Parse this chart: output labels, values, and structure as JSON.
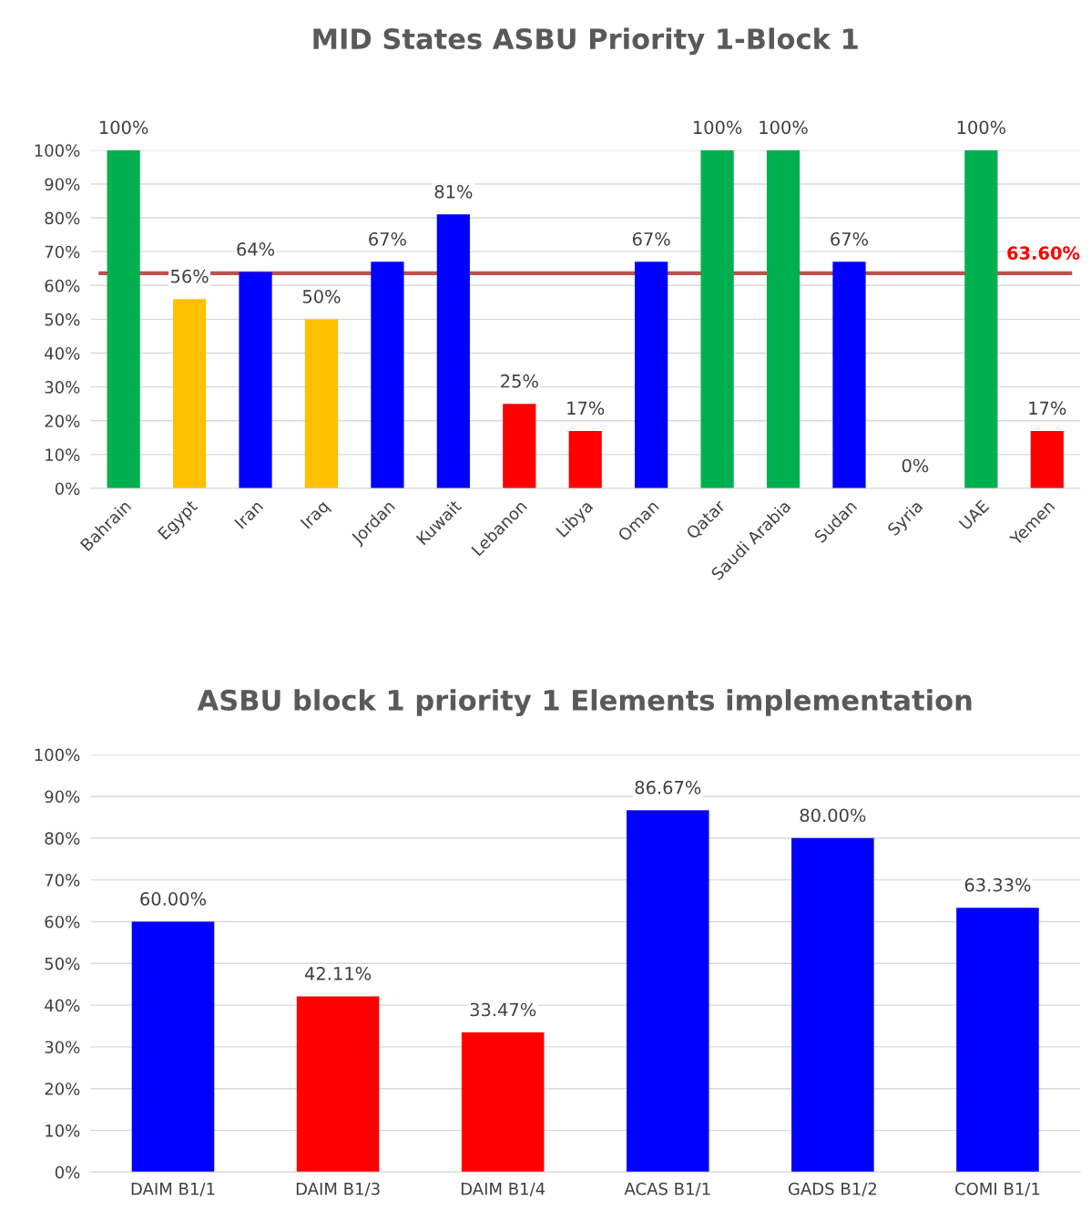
{
  "chart_data": [
    {
      "type": "bar",
      "title": "MID States ASBU Priority 1-Block 1",
      "categories": [
        "Bahrain",
        "Egypt",
        "Iran",
        "Iraq",
        "Jordan",
        "Kuwait",
        "Lebanon",
        "Libya",
        "Oman",
        "Qatar",
        "Saudi Arabia",
        "Sudan",
        "Syria",
        "UAE",
        "Yemen"
      ],
      "values": [
        100,
        56,
        64,
        50,
        67,
        81,
        25,
        17,
        67,
        100,
        100,
        67,
        0,
        100,
        17
      ],
      "colors": [
        "#00b050",
        "#ffc000",
        "#0000ff",
        "#ffc000",
        "#0000ff",
        "#0000ff",
        "#ff0000",
        "#ff0000",
        "#0000ff",
        "#00b050",
        "#00b050",
        "#0000ff",
        "#0000ff",
        "#00b050",
        "#ff0000"
      ],
      "value_labels": [
        "100%",
        "56%",
        "64%",
        "50%",
        "67%",
        "81%",
        "25%",
        "17%",
        "67%",
        "100%",
        "100%",
        "67%",
        "0%",
        "100%",
        "17%"
      ],
      "ylim": [
        0,
        100
      ],
      "yticks": [
        {
          "value": 0,
          "label": "0%"
        },
        {
          "value": 10,
          "label": "10%"
        },
        {
          "value": 20,
          "label": "20%"
        },
        {
          "value": 30,
          "label": "30%"
        },
        {
          "value": 40,
          "label": "40%"
        },
        {
          "value": 50,
          "label": "50%"
        },
        {
          "value": 60,
          "label": "60%"
        },
        {
          "value": 70,
          "label": "70%"
        },
        {
          "value": 80,
          "label": "80%"
        },
        {
          "value": 90,
          "label": "90%"
        },
        {
          "value": 100,
          "label": "100%"
        }
      ],
      "ref_lines": [
        {
          "axis": "y",
          "value": 63.6,
          "label": "63.60%",
          "color": "#c0504d"
        }
      ],
      "grid": "y"
    },
    {
      "type": "bar",
      "title": "ASBU block 1 priority 1 Elements implementation",
      "categories": [
        "DAIM B1/1",
        "DAIM B1/3",
        "DAIM B1/4",
        "ACAS B1/1",
        "GADS B1/2",
        "COMI B1/1"
      ],
      "values": [
        60,
        42.11,
        33.47,
        86.67,
        80,
        63.33
      ],
      "colors": [
        "#0000ff",
        "#ff0000",
        "#ff0000",
        "#0000ff",
        "#0000ff",
        "#0000ff"
      ],
      "value_labels": [
        "60.00%",
        "42.11%",
        "33.47%",
        "86.67%",
        "80.00%",
        "63.33%"
      ],
      "ylim": [
        0,
        100
      ],
      "yticks": [
        {
          "value": 0,
          "label": "0%"
        },
        {
          "value": 10,
          "label": "10%"
        },
        {
          "value": 20,
          "label": "20%"
        },
        {
          "value": 30,
          "label": "30%"
        },
        {
          "value": 40,
          "label": "40%"
        },
        {
          "value": 50,
          "label": "50%"
        },
        {
          "value": 60,
          "label": "60%"
        },
        {
          "value": 70,
          "label": "70%"
        },
        {
          "value": 80,
          "label": "80%"
        },
        {
          "value": 90,
          "label": "90%"
        },
        {
          "value": 100,
          "label": "100%"
        }
      ],
      "grid": "y"
    }
  ]
}
